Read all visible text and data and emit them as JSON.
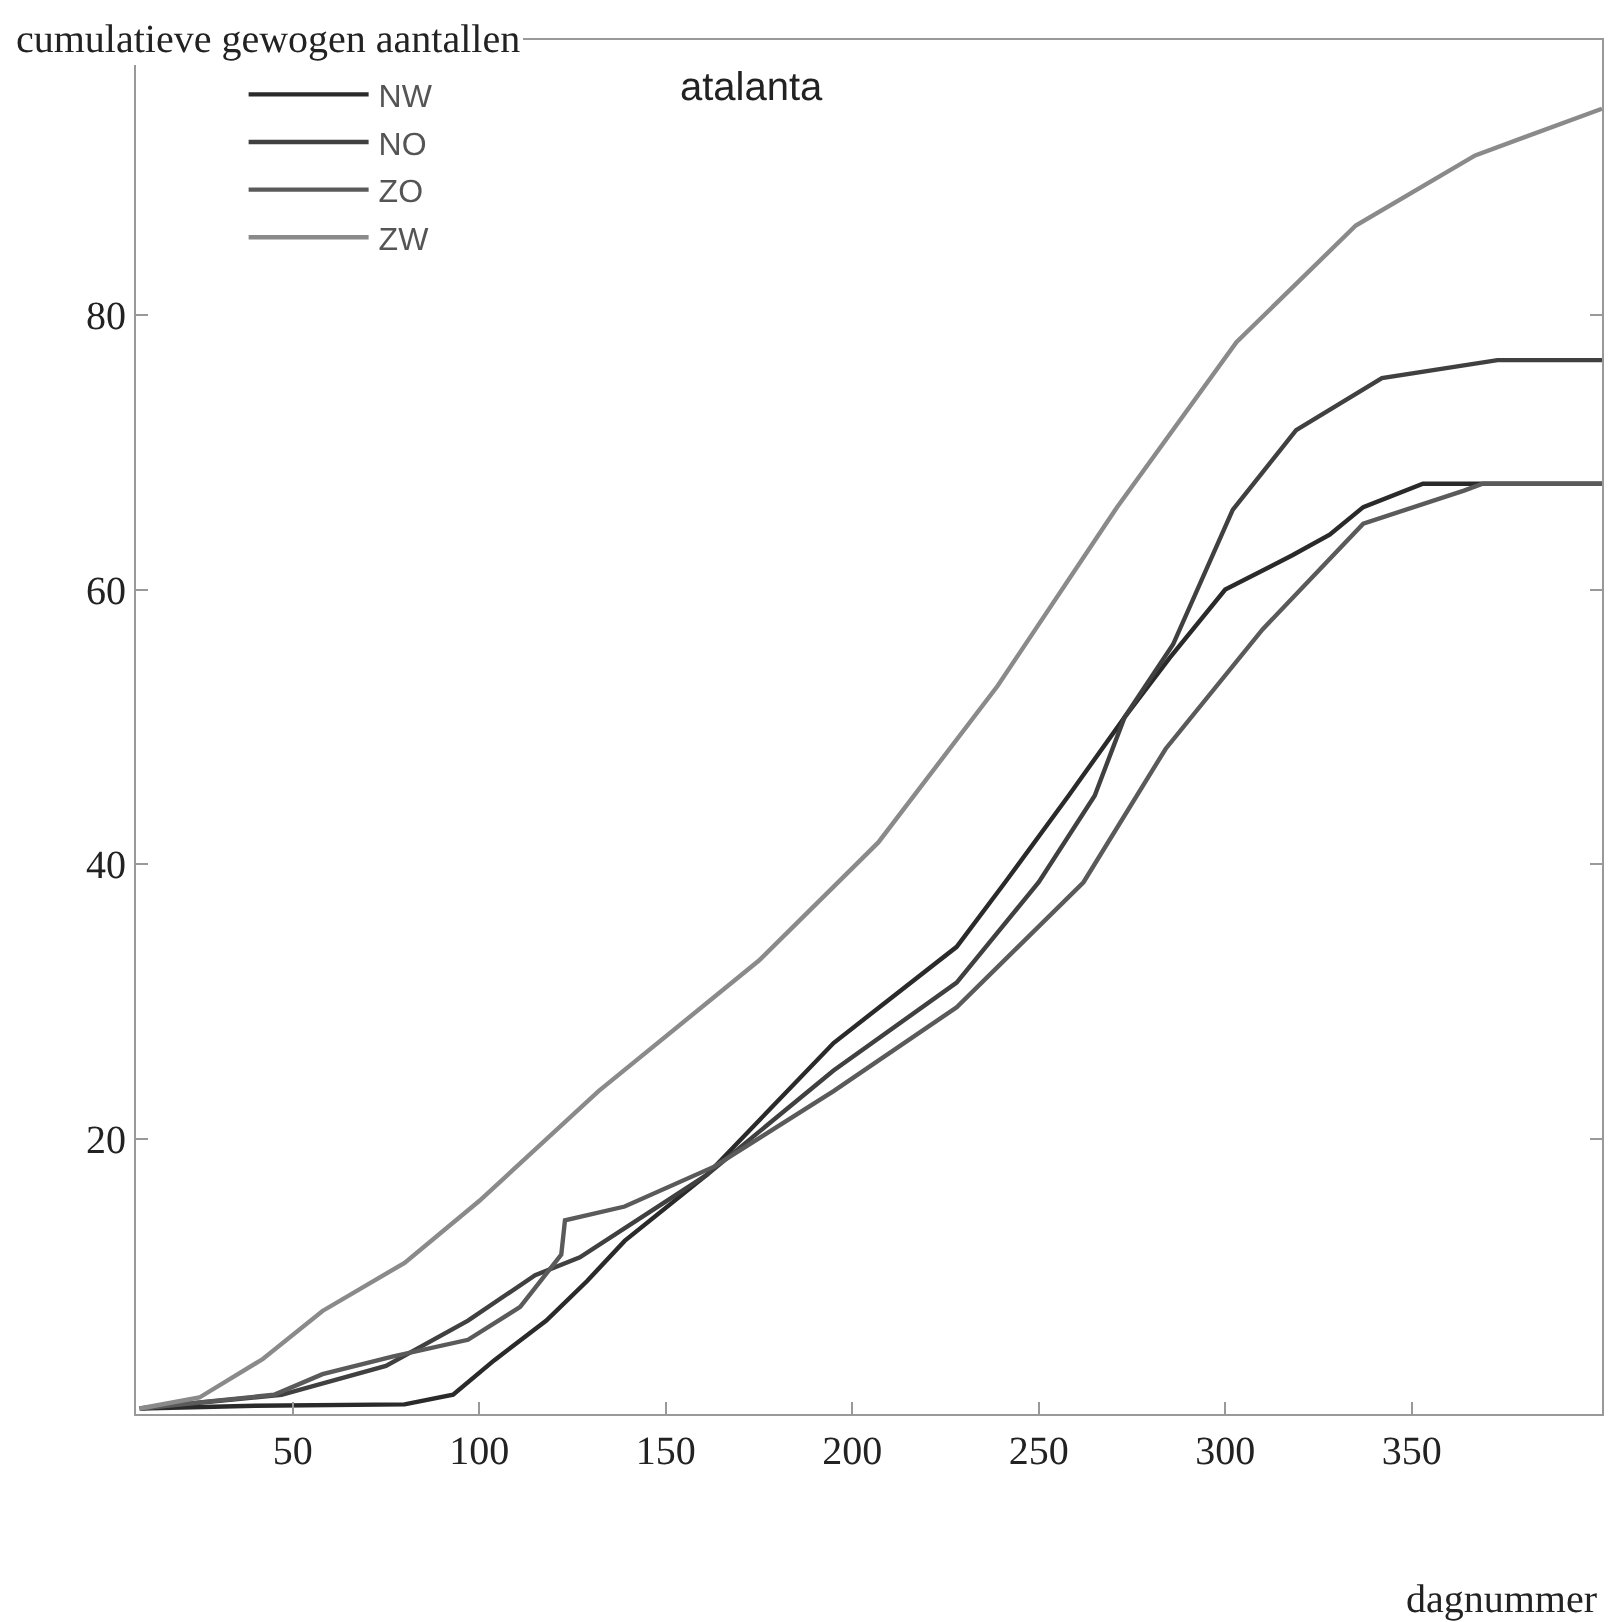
{
  "chart_data": {
    "type": "line",
    "title": "atalanta",
    "xlabel": "dagnummer",
    "ylabel": "cumulatieve gewogen aantallen",
    "xlim": [
      8,
      401
    ],
    "xticks": [
      50,
      100,
      150,
      200,
      250,
      300,
      350
    ],
    "ylim": [
      0,
      100
    ],
    "yticks": [
      20,
      40,
      60,
      80
    ],
    "legend": "top left",
    "marker": "none",
    "line_style": "solid",
    "series": [
      {
        "name": "NW",
        "color": "#2a2a2a",
        "x": [
          9,
          40,
          80,
          93,
          104,
          118,
          129,
          139,
          161,
          195,
          228,
          241,
          258,
          273,
          285,
          300,
          318,
          328,
          337,
          353,
          401
        ],
        "values": [
          0.4,
          0.6,
          0.7,
          1.4,
          3.9,
          6.8,
          9.7,
          12.6,
          17.4,
          27,
          34,
          38.7,
          45,
          50.7,
          55,
          60,
          62.5,
          64,
          66,
          67.7,
          67.7
        ]
      },
      {
        "name": "NO",
        "color": "#404040",
        "x": [
          9,
          47,
          75,
          97,
          115,
          127,
          161,
          195,
          228,
          250,
          265,
          273,
          286,
          302,
          319,
          342,
          373,
          401
        ],
        "values": [
          0.4,
          1.4,
          3.5,
          6.8,
          10.1,
          11.4,
          17.4,
          25,
          31.4,
          38.7,
          45,
          50.7,
          56,
          65.8,
          71.6,
          75.4,
          76.7,
          76.7
        ]
      },
      {
        "name": "ZO",
        "color": "#5a5a5a",
        "x": [
          9,
          45,
          58,
          77,
          97,
          111,
          122,
          123,
          139,
          163,
          195,
          228,
          262,
          284,
          310,
          337,
          364,
          369,
          401
        ],
        "values": [
          0.4,
          1.4,
          2.9,
          4.2,
          5.4,
          7.8,
          11.6,
          14.1,
          15.1,
          18,
          23.5,
          29.6,
          38.7,
          48.4,
          57.1,
          64.8,
          67.2,
          67.7,
          67.7
        ]
      },
      {
        "name": "ZW",
        "color": "#8a8a8a",
        "x": [
          9,
          25,
          42,
          58,
          80,
          100,
          132,
          175,
          207,
          239,
          271,
          303,
          335,
          367,
          401
        ],
        "values": [
          0.4,
          1.2,
          4,
          7.5,
          11,
          15.5,
          23.5,
          33,
          41.6,
          53,
          66,
          78,
          86.5,
          91.6,
          95
        ]
      }
    ]
  }
}
